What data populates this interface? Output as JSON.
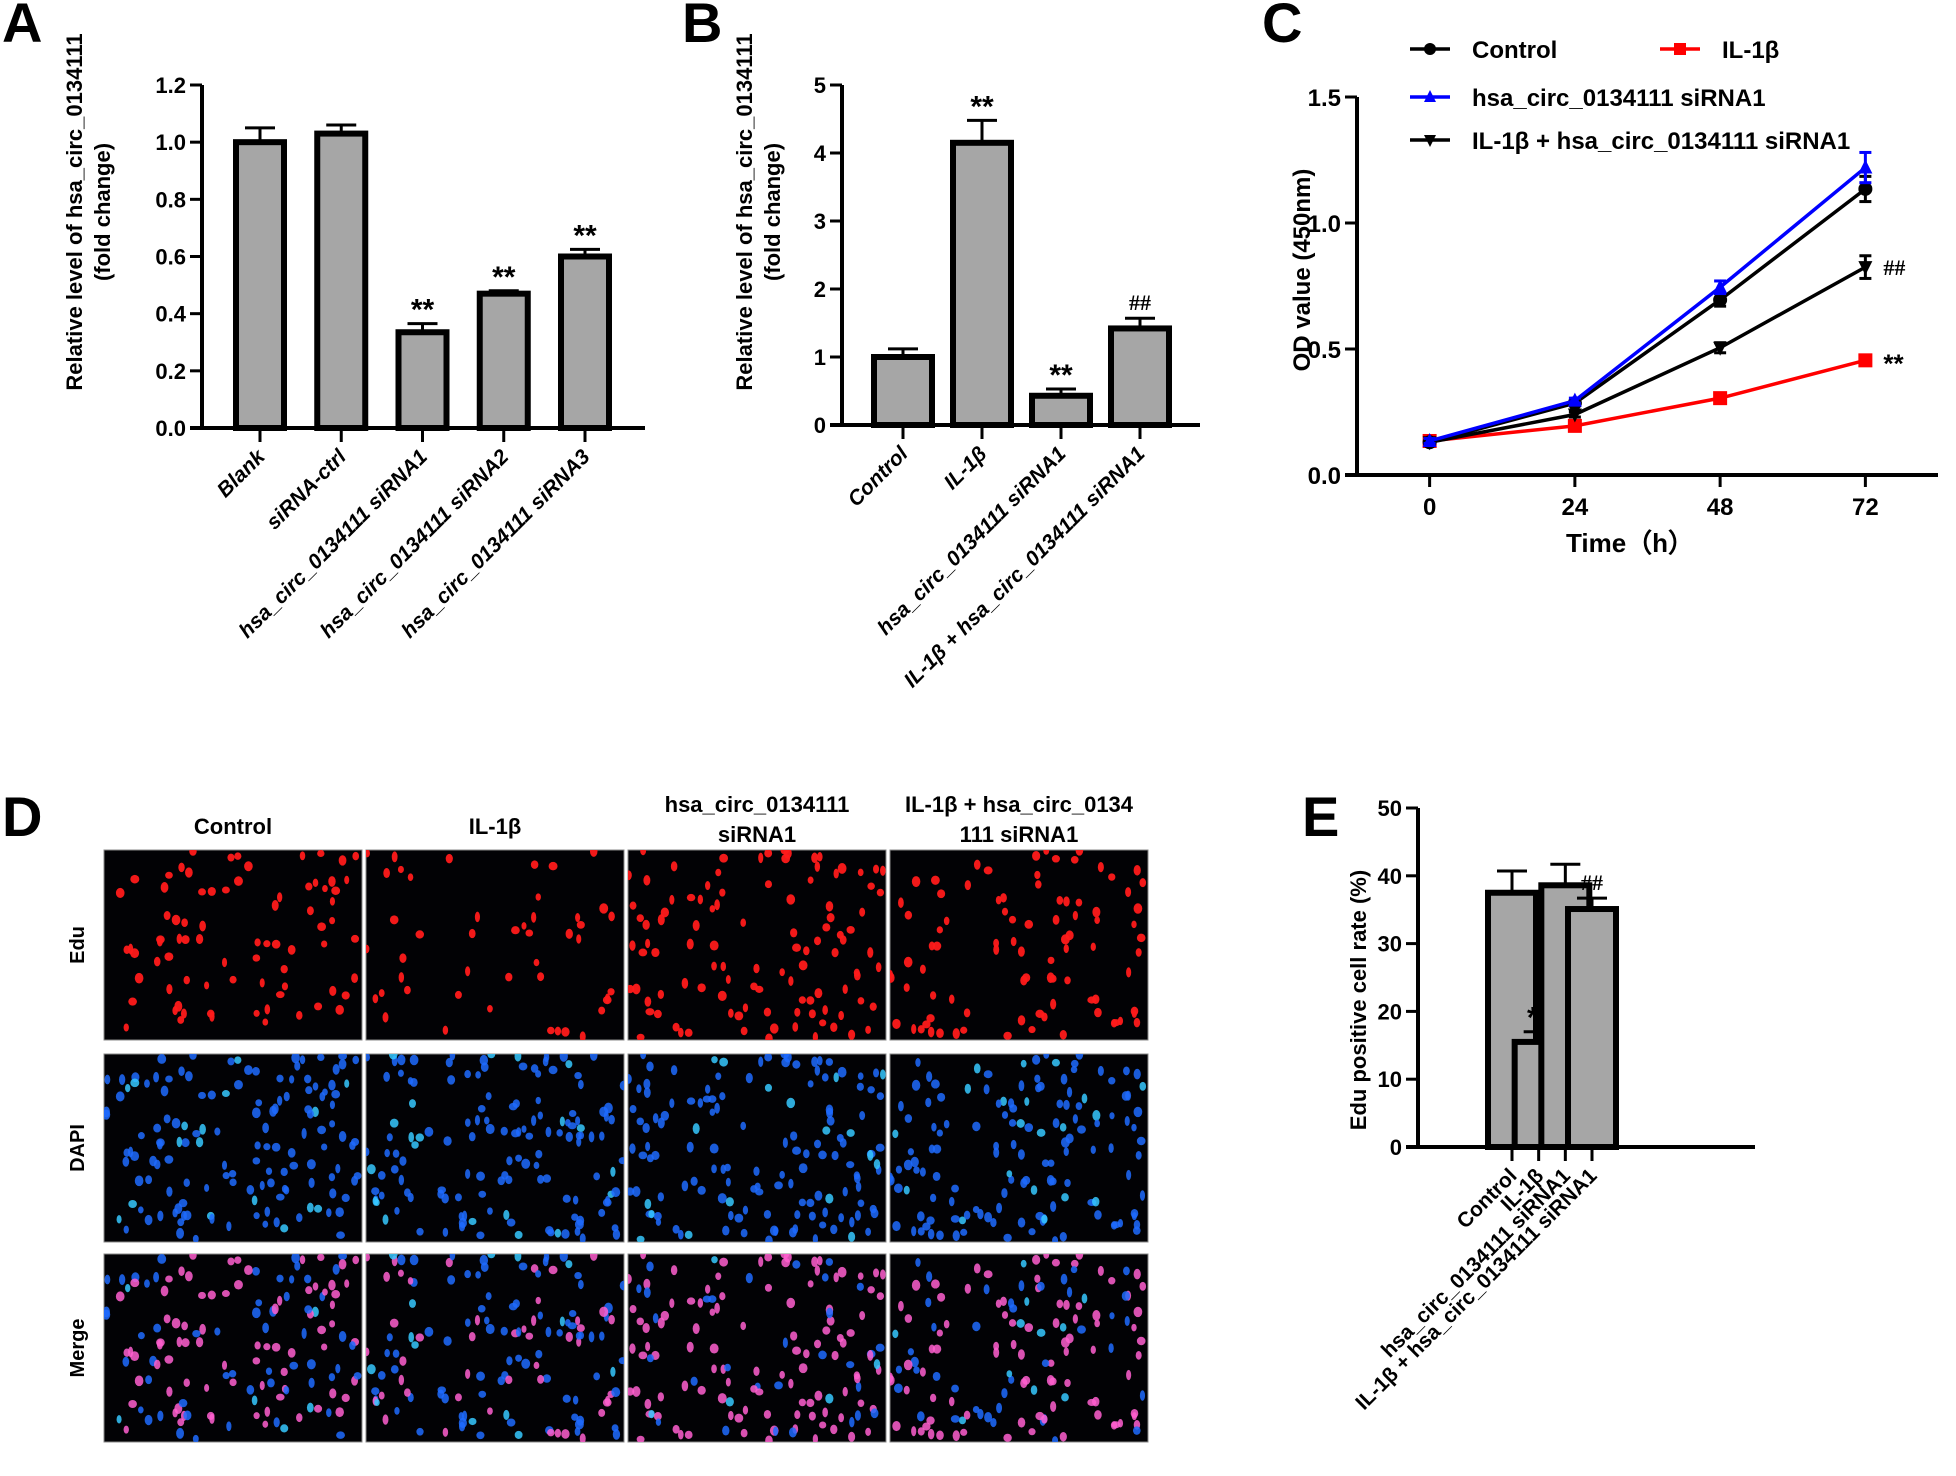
{
  "figure": {
    "panels": [
      "A",
      "B",
      "C",
      "D",
      "E"
    ]
  },
  "chart_data": [
    {
      "id": "A",
      "type": "bar",
      "panel_label": "A",
      "title": "",
      "xlabel": "",
      "ylabel": [
        "Relative level of hsa_circ_0134111",
        "(fold change)"
      ],
      "ylim": [
        0,
        1.2
      ],
      "yticks": [
        0.0,
        0.2,
        0.4,
        0.6,
        0.8,
        1.0,
        1.2
      ],
      "ytick_labels": [
        "0.0",
        "0.2",
        "0.4",
        "0.6",
        "0.8",
        "1.0",
        "1.2"
      ],
      "categories": [
        "Blank",
        "siRNA-ctrl",
        "hsa_circ_0134111 siRNA1",
        "hsa_circ_0134111 siRNA2",
        "hsa_circ_0134111 siRNA3"
      ],
      "values": [
        1.0,
        1.03,
        0.335,
        0.47,
        0.6
      ],
      "errors": [
        0.05,
        0.03,
        0.03,
        0.01,
        0.025
      ],
      "annotations": [
        "",
        "",
        "**",
        "**",
        "**"
      ],
      "bar_color": "#a6a6a6",
      "grid": false
    },
    {
      "id": "B",
      "type": "bar",
      "panel_label": "B",
      "title": "",
      "xlabel": "",
      "ylabel": [
        "Relative level of hsa_circ_0134111",
        "(fold change)"
      ],
      "ylim": [
        0,
        5
      ],
      "yticks": [
        0,
        1,
        2,
        3,
        4,
        5
      ],
      "ytick_labels": [
        "0",
        "1",
        "2",
        "3",
        "4",
        "5"
      ],
      "categories": [
        "Control",
        "IL-1β",
        "hsa_circ_0134111 siRNA1",
        "IL-1β + hsa_circ_0134111 siRNA1"
      ],
      "values": [
        1.0,
        4.15,
        0.43,
        1.42
      ],
      "errors": [
        0.12,
        0.33,
        0.1,
        0.15
      ],
      "annotations": [
        "",
        "**",
        "**",
        "##"
      ],
      "bar_color": "#a6a6a6",
      "grid": false
    },
    {
      "id": "C",
      "type": "line",
      "panel_label": "C",
      "title": "",
      "xlabel": "Time（h）",
      "ylabel": [
        "OD value (450nm)"
      ],
      "x": [
        0,
        24,
        48,
        72
      ],
      "xticks": [
        0,
        24,
        48,
        72
      ],
      "xtick_labels": [
        "0",
        "24",
        "48",
        "72"
      ],
      "xlim": [
        -12,
        84
      ],
      "ylim": [
        0,
        1.5
      ],
      "yticks": [
        0.0,
        0.5,
        1.0,
        1.5
      ],
      "ytick_labels": [
        "0.0",
        "0.5",
        "1.0",
        "1.5"
      ],
      "legend_position": "top",
      "series": [
        {
          "name": "Control",
          "color": "#000000",
          "marker": "circle",
          "values": [
            0.13,
            0.285,
            0.695,
            1.135
          ],
          "errors": [
            0.01,
            0.01,
            0.025,
            0.05
          ]
        },
        {
          "name": "IL-1β",
          "color": "#ff0000",
          "marker": "square",
          "values": [
            0.135,
            0.195,
            0.305,
            0.455
          ],
          "errors": [
            0.01,
            0.01,
            0.02,
            0.02
          ]
        },
        {
          "name": "hsa_circ_0134111 siRNA1",
          "color": "#0000ff",
          "marker": "triangle-up",
          "values": [
            0.135,
            0.295,
            0.745,
            1.22
          ],
          "errors": [
            0.01,
            0.01,
            0.025,
            0.06
          ]
        },
        {
          "name": "IL-1β + hsa_circ_0134111 siRNA1",
          "color": "#000000",
          "marker": "triangle-down",
          "values": [
            0.13,
            0.24,
            0.505,
            0.825
          ],
          "errors": [
            0.01,
            0.01,
            0.02,
            0.045
          ]
        }
      ],
      "annotations": [
        {
          "series": "IL-1β + hsa_circ_0134111 siRNA1",
          "x": 72,
          "text": "##"
        },
        {
          "series": "IL-1β",
          "x": 72,
          "text": "**"
        }
      ],
      "grid": false
    },
    {
      "id": "E",
      "type": "bar",
      "panel_label": "E",
      "title": "",
      "xlabel": "",
      "ylabel": [
        "Edu positive cell rate (%)"
      ],
      "ylim": [
        0,
        50
      ],
      "yticks": [
        0,
        10,
        20,
        30,
        40,
        50
      ],
      "ytick_labels": [
        "0",
        "10",
        "20",
        "30",
        "40",
        "50"
      ],
      "categories": [
        "Control",
        "IL-1β",
        "hsa_circ_0134111 siRNA1",
        "IL-1β + hsa_circ_0134111 siRNA1"
      ],
      "values": [
        37.5,
        15.5,
        38.6,
        35.1
      ],
      "errors": [
        3.2,
        1.5,
        3.1,
        1.6
      ],
      "annotations": [
        "",
        "**",
        "",
        "##"
      ],
      "bar_color": "#a6a6a6",
      "grid": false
    }
  ],
  "microscopy": {
    "panel_label": "D",
    "columns": [
      {
        "line1": "Control",
        "line2": ""
      },
      {
        "line1": "IL-1β",
        "line2": ""
      },
      {
        "line1": "hsa_circ_0134111",
        "line2": "siRNA1"
      },
      {
        "line1": "IL-1β + hsa_circ_0134",
        "line2": "111 siRNA1"
      }
    ],
    "rows": [
      "Edu",
      "DAPI",
      "Merge"
    ],
    "relative_density": [
      0.55,
      0.35,
      0.8,
      0.6
    ],
    "colors": {
      "edu": "#ff1a1a",
      "dapi": "#1e6bff",
      "dapi_bright": "#36c8ff",
      "merge_pink": "#ff5fd0",
      "background": "#020205"
    }
  }
}
